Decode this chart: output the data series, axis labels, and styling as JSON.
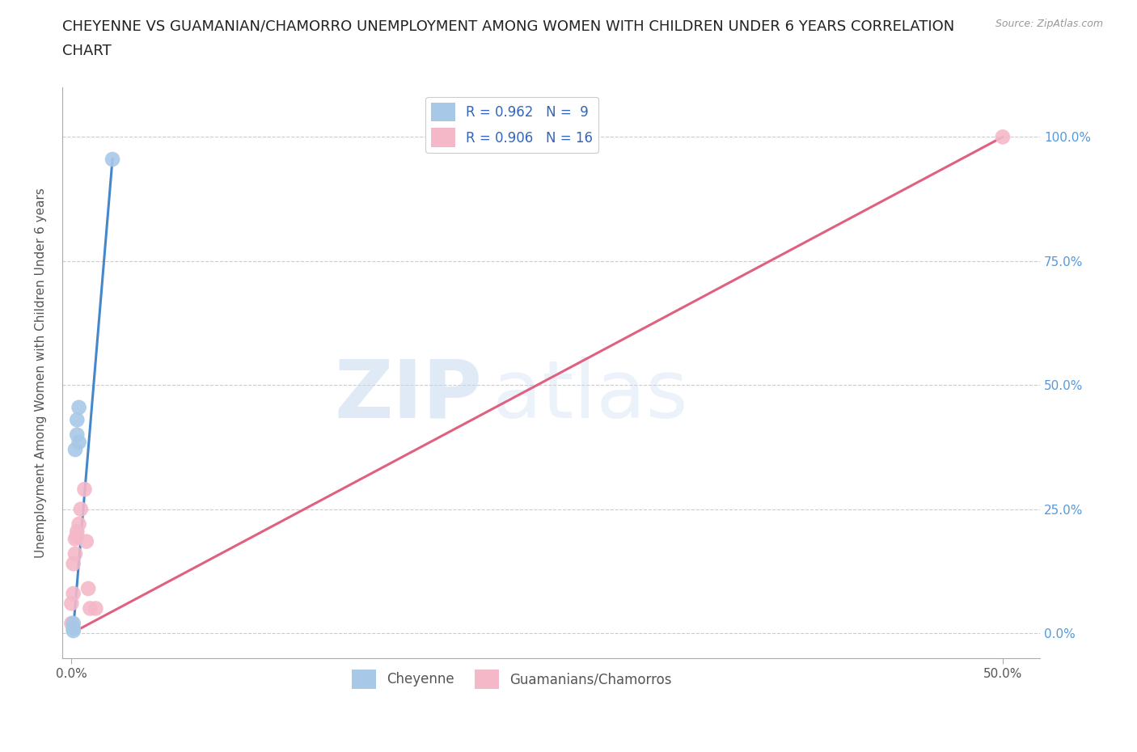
{
  "title_line1": "CHEYENNE VS GUAMANIAN/CHAMORRO UNEMPLOYMENT AMONG WOMEN WITH CHILDREN UNDER 6 YEARS CORRELATION",
  "title_line2": "CHART",
  "source": "Source: ZipAtlas.com",
  "ylabel": "Unemployment Among Women with Children Under 6 years",
  "xlim": [
    -0.005,
    0.52
  ],
  "ylim": [
    -0.05,
    1.1
  ],
  "xticks": [
    0.0,
    0.5
  ],
  "yticks": [
    0.0,
    0.25,
    0.5,
    0.75,
    1.0
  ],
  "blue_scatter_x": [
    0.001,
    0.001,
    0.001,
    0.002,
    0.003,
    0.003,
    0.004,
    0.004,
    0.022
  ],
  "blue_scatter_y": [
    0.005,
    0.01,
    0.02,
    0.37,
    0.4,
    0.43,
    0.385,
    0.455,
    0.955
  ],
  "pink_scatter_x": [
    0.0,
    0.0,
    0.001,
    0.001,
    0.002,
    0.002,
    0.003,
    0.003,
    0.004,
    0.005,
    0.007,
    0.008,
    0.009,
    0.01,
    0.013,
    0.5
  ],
  "pink_scatter_y": [
    0.02,
    0.06,
    0.08,
    0.14,
    0.16,
    0.19,
    0.195,
    0.205,
    0.22,
    0.25,
    0.29,
    0.185,
    0.09,
    0.05,
    0.05,
    1.0
  ],
  "blue_line_x": [
    0.001,
    0.022
  ],
  "blue_line_y": [
    0.01,
    0.955
  ],
  "pink_line_x": [
    0.0,
    0.5
  ],
  "pink_line_y": [
    0.0,
    1.0
  ],
  "blue_color": "#a8c8e8",
  "blue_line_color": "#4488cc",
  "pink_color": "#f4b8c8",
  "pink_line_color": "#e06080",
  "blue_R": "0.962",
  "blue_N": "9",
  "pink_R": "0.906",
  "pink_N": "16",
  "watermark_zip": "ZIP",
  "watermark_atlas": "atlas",
  "legend_label_blue": "Cheyenne",
  "legend_label_pink": "Guamanians/Chamorros",
  "background_color": "#ffffff",
  "grid_color": "#cccccc",
  "title_fontsize": 13,
  "axis_label_fontsize": 11,
  "tick_fontsize": 11,
  "legend_fontsize": 12,
  "right_tick_color": "#5599dd"
}
